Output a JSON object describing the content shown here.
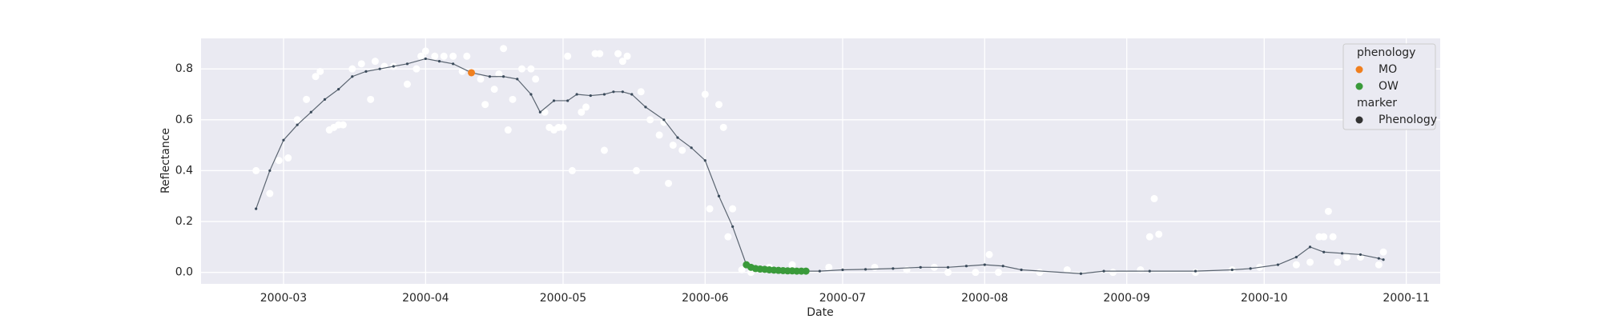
{
  "chart_data": {
    "type": "line",
    "xlabel": "Date",
    "ylabel": "Reflectance",
    "xlim": [
      43,
      313.4
    ],
    "ylim": [
      -0.045,
      0.92
    ],
    "xticks": [
      {
        "value": 61,
        "label": "2000-03"
      },
      {
        "value": 92,
        "label": "2000-04"
      },
      {
        "value": 122,
        "label": "2000-05"
      },
      {
        "value": 153,
        "label": "2000-06"
      },
      {
        "value": 183,
        "label": "2000-07"
      },
      {
        "value": 214,
        "label": "2000-08"
      },
      {
        "value": 245,
        "label": "2000-09"
      },
      {
        "value": 275,
        "label": "2000-10"
      },
      {
        "value": 306,
        "label": "2000-11"
      }
    ],
    "yticks": [
      {
        "value": 0,
        "label": "0.0"
      },
      0.2,
      0.4,
      0.6,
      0.8
    ],
    "grid": true,
    "background": "#eaeaf2",
    "observations": {
      "color": "#ffffff",
      "x": [
        55,
        58,
        60,
        62,
        64,
        66,
        68,
        69,
        71,
        72,
        73,
        74,
        76,
        78,
        80,
        81,
        83,
        85,
        88,
        90,
        91,
        92,
        94,
        96,
        98,
        100,
        101,
        104,
        105,
        107,
        108,
        109,
        110,
        111,
        113,
        115,
        116,
        118,
        119,
        120,
        121,
        122,
        123,
        124,
        126,
        127,
        129,
        130,
        131,
        134,
        135,
        136,
        138,
        139,
        141,
        143,
        144,
        145,
        146,
        148,
        153,
        154,
        156,
        157,
        158,
        159,
        161,
        163,
        167,
        172,
        180,
        190,
        197,
        203,
        206,
        212,
        215,
        217,
        226,
        232,
        242,
        248,
        250,
        251,
        252,
        260,
        268,
        274,
        282,
        285,
        287,
        288,
        289,
        290,
        291,
        293,
        296,
        300,
        301
      ],
      "values": [
        0.4,
        0.31,
        0.44,
        0.45,
        0.6,
        0.68,
        0.77,
        0.79,
        0.56,
        0.57,
        0.58,
        0.58,
        0.8,
        0.82,
        0.68,
        0.83,
        0.81,
        0.81,
        0.74,
        0.8,
        0.85,
        0.87,
        0.85,
        0.85,
        0.85,
        0.79,
        0.85,
        0.76,
        0.66,
        0.72,
        0.78,
        0.88,
        0.56,
        0.68,
        0.8,
        0.8,
        0.76,
        0.63,
        0.57,
        0.56,
        0.57,
        0.57,
        0.85,
        0.4,
        0.63,
        0.65,
        0.86,
        0.86,
        0.48,
        0.86,
        0.83,
        0.85,
        0.4,
        0.71,
        0.6,
        0.54,
        0.59,
        0.35,
        0.5,
        0.48,
        0.7,
        0.25,
        0.66,
        0.57,
        0.14,
        0.25,
        0.01,
        0.0,
        0.02,
        0.03,
        0.02,
        0.02,
        0.01,
        0.02,
        0.0,
        0.0,
        0.07,
        0.0,
        0.0,
        0.01,
        0.0,
        0.01,
        0.14,
        0.29,
        0.15,
        0.0,
        0.01,
        0.02,
        0.03,
        0.04,
        0.14,
        0.14,
        0.24,
        0.14,
        0.04,
        0.06,
        0.06,
        0.03,
        0.08
      ]
    },
    "line": {
      "color": "#5a6470",
      "marker_color": "#3a4a5a",
      "x": [
        55,
        58,
        61,
        64,
        67,
        70,
        73,
        76,
        79,
        82,
        85,
        88,
        92,
        95,
        98,
        102,
        106,
        109,
        112,
        115,
        117,
        120,
        123,
        125,
        128,
        131,
        133,
        135,
        137,
        140,
        144,
        147,
        150,
        153,
        156,
        159,
        162,
        165,
        168,
        171,
        175,
        178,
        183,
        188,
        194,
        200,
        206,
        210,
        214,
        218,
        222,
        235,
        240,
        250,
        260,
        268,
        272,
        278,
        282,
        285,
        288,
        292,
        296,
        300,
        301
      ],
      "values": [
        0.25,
        0.4,
        0.52,
        0.58,
        0.63,
        0.68,
        0.72,
        0.77,
        0.79,
        0.8,
        0.81,
        0.82,
        0.84,
        0.83,
        0.82,
        0.785,
        0.77,
        0.77,
        0.76,
        0.7,
        0.63,
        0.675,
        0.675,
        0.7,
        0.695,
        0.7,
        0.71,
        0.71,
        0.7,
        0.65,
        0.6,
        0.53,
        0.49,
        0.44,
        0.3,
        0.18,
        0.03,
        0.013,
        0.009,
        0.006,
        0.005,
        0.005,
        0.01,
        0.012,
        0.015,
        0.02,
        0.02,
        0.025,
        0.03,
        0.025,
        0.01,
        -0.005,
        0.005,
        0.005,
        0.005,
        0.01,
        0.015,
        0.03,
        0.06,
        0.1,
        0.08,
        0.075,
        0.07,
        0.055,
        0.05
      ]
    },
    "phenology": [
      {
        "name": "MO",
        "color": "#f07f1e",
        "x": [
          102
        ],
        "values": [
          0.785
        ]
      },
      {
        "name": "OW",
        "color": "#3a9a3a",
        "x": [
          162,
          163,
          164,
          165,
          166,
          167,
          168,
          169,
          170,
          171,
          172,
          173,
          174,
          175
        ],
        "values": [
          0.03,
          0.02,
          0.015,
          0.013,
          0.012,
          0.01,
          0.009,
          0.008,
          0.007,
          0.006,
          0.006,
          0.005,
          0.005,
          0.005
        ]
      }
    ],
    "legend": {
      "position": "upper right",
      "title": "phenology",
      "marker_title": "marker",
      "marker_label": "Phenology",
      "marker_color": "#333333"
    }
  }
}
